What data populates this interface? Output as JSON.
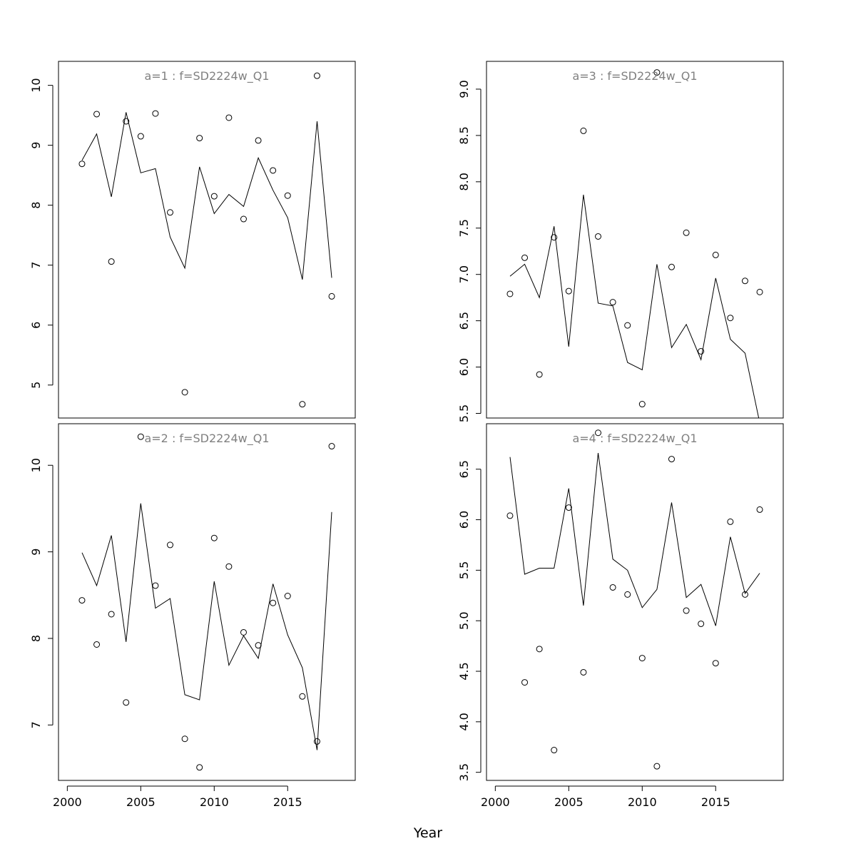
{
  "xlabel": "Year",
  "chart_data": [
    {
      "type": "scatter",
      "title": "a=1  :  f=SD2224w_Q1",
      "xlim": [
        1999.4,
        2019.6
      ],
      "ylim": [
        4.45,
        10.4
      ],
      "xticks": [
        2000,
        2005,
        2010,
        2015
      ],
      "yticks": [
        5,
        6,
        7,
        8,
        9,
        10
      ],
      "show_x_axis": false,
      "x": [
        2001,
        2002,
        2003,
        2004,
        2005,
        2006,
        2007,
        2008,
        2009,
        2010,
        2011,
        2012,
        2013,
        2014,
        2015,
        2016,
        2017,
        2018
      ],
      "observed": [
        8.69,
        9.52,
        7.06,
        9.4,
        9.15,
        9.53,
        7.88,
        4.88,
        9.12,
        8.15,
        9.46,
        7.77,
        9.08,
        8.58,
        8.16,
        4.68,
        10.16,
        6.48
      ],
      "fitted": [
        8.75,
        9.19,
        8.14,
        9.55,
        8.54,
        8.61,
        7.47,
        6.95,
        8.64,
        7.86,
        8.18,
        7.98,
        8.79,
        8.25,
        7.79,
        6.76,
        9.4,
        6.79
      ]
    },
    {
      "type": "scatter",
      "title": "a=3  :  f=SD2224w_Q1",
      "xlim": [
        1999.4,
        2019.6
      ],
      "ylim": [
        5.45,
        9.3
      ],
      "xticks": [
        2000,
        2005,
        2010,
        2015
      ],
      "yticks": [
        5.5,
        6.0,
        6.5,
        7.0,
        7.5,
        8.0,
        8.5,
        9.0
      ],
      "ytick_decimals": 1,
      "show_x_axis": false,
      "x": [
        2001,
        2002,
        2003,
        2004,
        2005,
        2006,
        2007,
        2008,
        2009,
        2010,
        2011,
        2012,
        2013,
        2014,
        2015,
        2016,
        2017,
        2018
      ],
      "observed": [
        6.79,
        7.18,
        5.92,
        7.4,
        6.82,
        8.55,
        7.41,
        6.7,
        6.45,
        5.6,
        9.18,
        7.08,
        7.45,
        6.17,
        7.21,
        6.53,
        6.93,
        6.81
      ],
      "fitted": [
        6.98,
        7.11,
        6.75,
        7.52,
        6.22,
        7.86,
        6.69,
        6.66,
        6.05,
        5.97,
        7.11,
        6.21,
        6.46,
        6.08,
        6.96,
        6.3,
        6.15,
        5.4
      ]
    },
    {
      "type": "scatter",
      "title": "a=2  :  f=SD2224w_Q1",
      "xlim": [
        1999.4,
        2019.6
      ],
      "ylim": [
        6.36,
        10.48
      ],
      "xticks": [
        2000,
        2005,
        2010,
        2015
      ],
      "yticks": [
        7,
        8,
        9,
        10
      ],
      "show_x_axis": true,
      "x": [
        2001,
        2002,
        2003,
        2004,
        2005,
        2006,
        2007,
        2008,
        2009,
        2010,
        2011,
        2012,
        2013,
        2014,
        2015,
        2016,
        2017,
        2018
      ],
      "observed": [
        8.44,
        7.93,
        8.28,
        7.26,
        10.33,
        8.61,
        9.08,
        6.84,
        6.51,
        9.16,
        8.83,
        8.07,
        7.92,
        8.41,
        8.49,
        7.33,
        6.81,
        10.22
      ],
      "fitted": [
        8.99,
        8.61,
        9.19,
        7.96,
        9.56,
        8.35,
        8.46,
        7.35,
        7.29,
        8.66,
        7.69,
        8.03,
        7.77,
        8.63,
        8.04,
        7.66,
        6.71,
        9.46
      ]
    },
    {
      "type": "scatter",
      "title": "a=4  :  f=SD2224w_Q1",
      "xlim": [
        1999.4,
        2019.6
      ],
      "ylim": [
        3.42,
        6.95
      ],
      "xticks": [
        2000,
        2005,
        2010,
        2015
      ],
      "yticks": [
        3.5,
        4.0,
        4.5,
        5.0,
        5.5,
        6.0,
        6.5
      ],
      "ytick_decimals": 1,
      "show_x_axis": true,
      "x": [
        2001,
        2002,
        2003,
        2004,
        2005,
        2006,
        2007,
        2008,
        2009,
        2010,
        2011,
        2012,
        2013,
        2014,
        2015,
        2016,
        2017,
        2018
      ],
      "observed": [
        6.04,
        4.39,
        4.72,
        3.72,
        6.12,
        4.49,
        6.86,
        5.33,
        5.26,
        4.63,
        3.56,
        6.6,
        5.1,
        4.97,
        4.58,
        5.98,
        5.26,
        6.1
      ],
      "fitted": [
        6.62,
        5.46,
        5.52,
        5.52,
        6.31,
        5.15,
        6.66,
        5.61,
        5.5,
        5.13,
        5.31,
        6.17,
        5.23,
        5.36,
        4.95,
        5.83,
        5.27,
        5.47
      ]
    }
  ]
}
